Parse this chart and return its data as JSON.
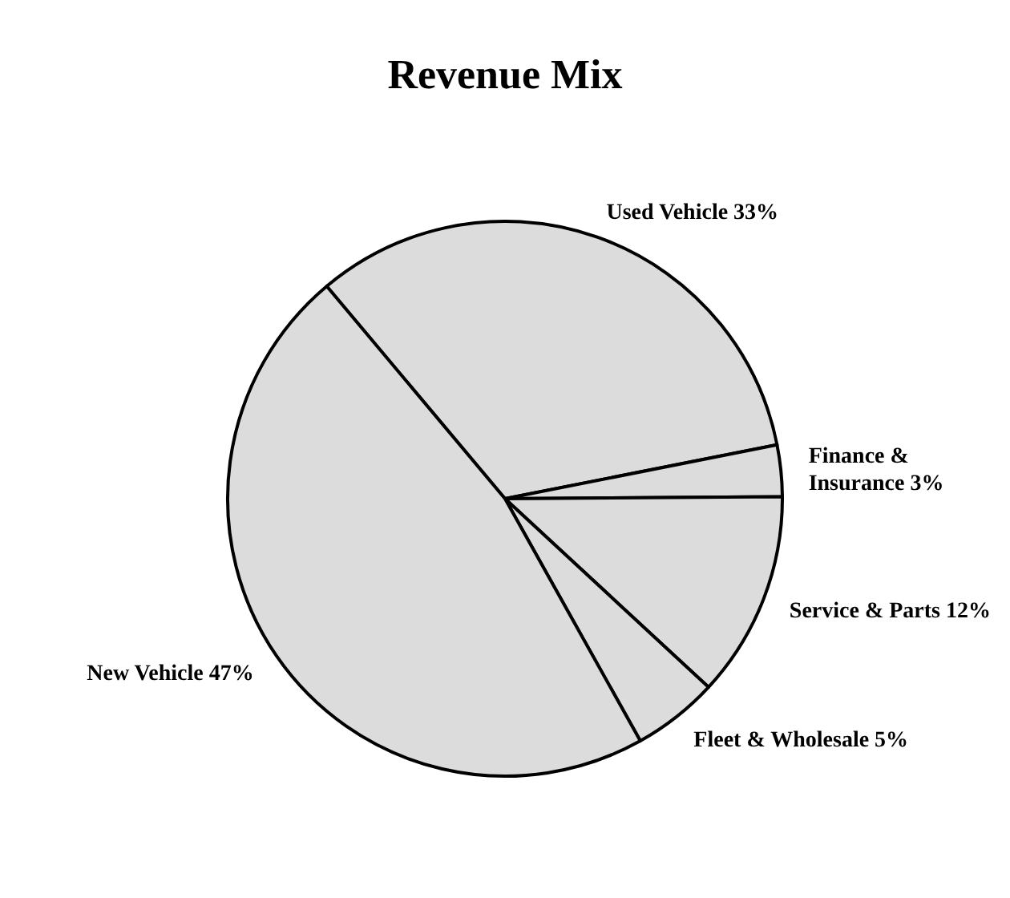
{
  "chart_data": {
    "type": "pie",
    "title": "Revenue Mix",
    "categories": [
      "Used Vehicle",
      "Finance & Insurance",
      "Service & Parts",
      "Fleet & Wholesale",
      "New Vehicle"
    ],
    "values": [
      33,
      3,
      12,
      5,
      47
    ],
    "value_labels": [
      "33%",
      "3%",
      "12%",
      "5%",
      "47%"
    ],
    "colors": [
      "#dcdcdc",
      "#dcdcdc",
      "#dcdcdc",
      "#dcdcdc",
      "#dcdcdc"
    ]
  }
}
